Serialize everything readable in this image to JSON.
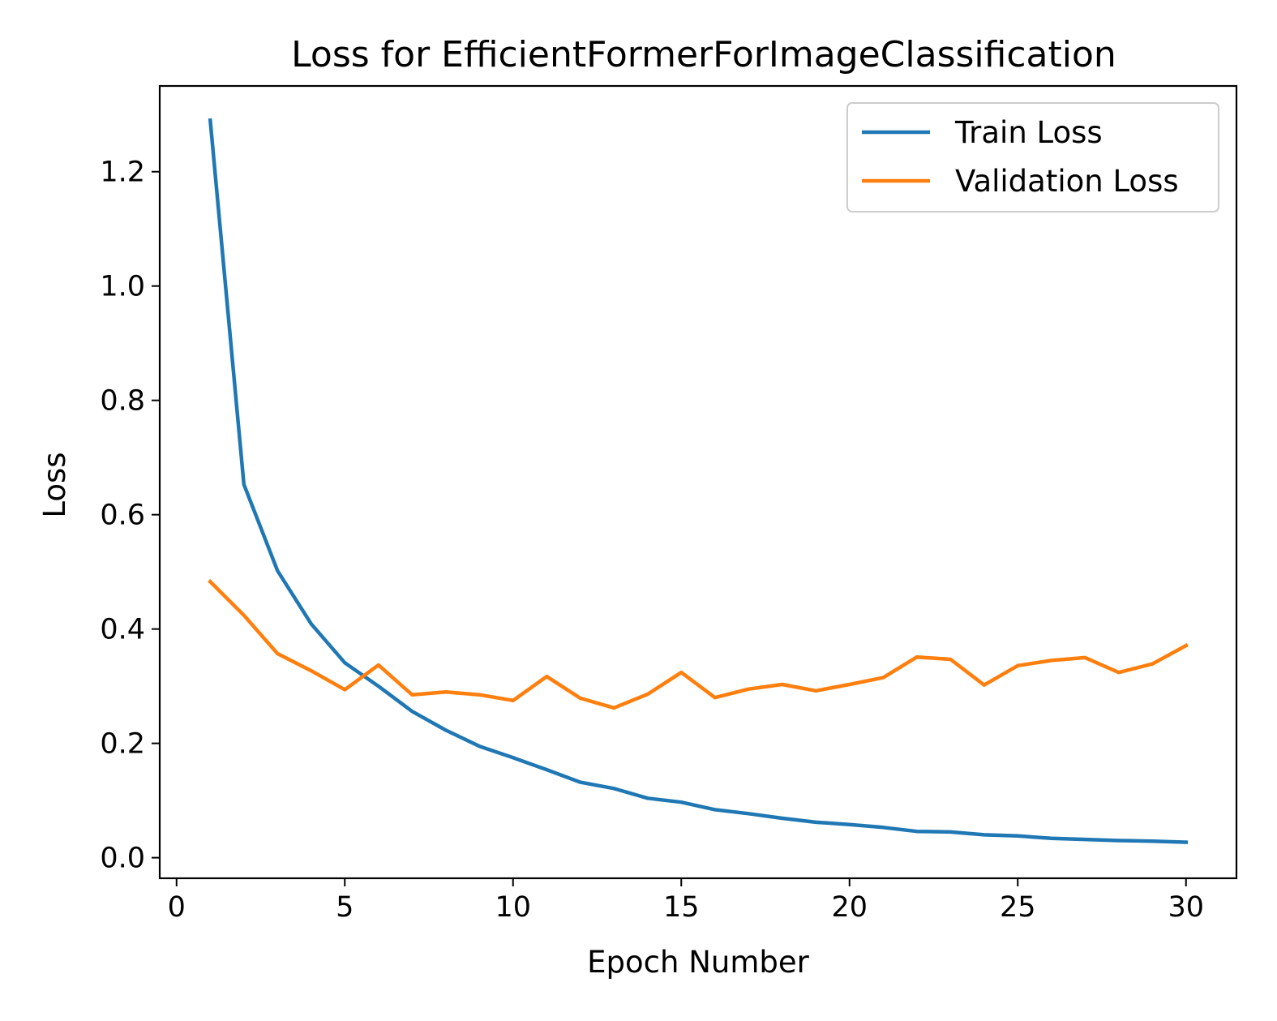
{
  "chart_data": {
    "type": "line",
    "title": "Loss for EfficientFormerForImageClassification",
    "xlabel": "Epoch Number",
    "ylabel": "Loss",
    "xlim": [
      -0.5,
      31.5
    ],
    "ylim": [
      -0.036,
      1.35
    ],
    "xticks": [
      0,
      5,
      10,
      15,
      20,
      25,
      30
    ],
    "xtick_labels": [
      "0",
      "5",
      "10",
      "15",
      "20",
      "25",
      "30"
    ],
    "yticks": [
      0.0,
      0.2,
      0.4,
      0.6,
      0.8,
      1.0,
      1.2
    ],
    "ytick_labels": [
      "0.0",
      "0.2",
      "0.4",
      "0.6",
      "0.8",
      "1.0",
      "1.2"
    ],
    "grid": false,
    "legend_position": "top-right",
    "x": [
      1,
      2,
      3,
      4,
      5,
      6,
      7,
      8,
      9,
      10,
      11,
      12,
      13,
      14,
      15,
      16,
      17,
      18,
      19,
      20,
      21,
      22,
      23,
      24,
      25,
      26,
      27,
      28,
      29,
      30
    ],
    "series": [
      {
        "name": "Train Loss",
        "color": "#1f77b4",
        "values": [
          1.29,
          0.653,
          0.502,
          0.409,
          0.341,
          0.3,
          0.256,
          0.223,
          0.195,
          0.175,
          0.154,
          0.132,
          0.121,
          0.104,
          0.097,
          0.084,
          0.077,
          0.069,
          0.062,
          0.058,
          0.053,
          0.046,
          0.045,
          0.04,
          0.038,
          0.034,
          0.032,
          0.03,
          0.029,
          0.027
        ]
      },
      {
        "name": "Validation Loss",
        "color": "#ff7f0e",
        "values": [
          0.483,
          0.424,
          0.357,
          0.327,
          0.294,
          0.337,
          0.285,
          0.29,
          0.285,
          0.275,
          0.317,
          0.279,
          0.262,
          0.286,
          0.324,
          0.28,
          0.295,
          0.303,
          0.292,
          0.303,
          0.315,
          0.351,
          0.347,
          0.302,
          0.336,
          0.345,
          0.35,
          0.324,
          0.339,
          0.371
        ]
      }
    ]
  }
}
